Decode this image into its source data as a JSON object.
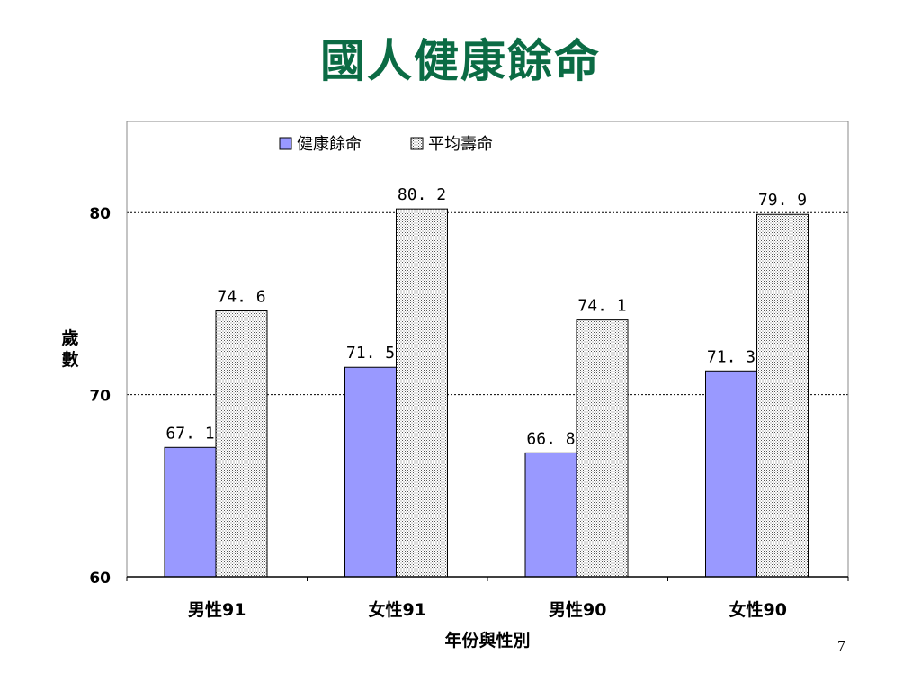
{
  "slide": {
    "title": "國人健康餘命",
    "page_number": "7"
  },
  "chart_data": {
    "type": "bar",
    "title": "",
    "xlabel": "年份與性別",
    "ylabel": "歲數",
    "categories": [
      "男性91",
      "女性91",
      "男性90",
      "女性90"
    ],
    "series": [
      {
        "name": "健康餘命",
        "values": [
          67.1,
          71.5,
          66.8,
          71.3
        ],
        "labels": [
          "67.1",
          "71.5",
          "66.8",
          "71.3"
        ],
        "color": "#9999ff",
        "pattern": "solid"
      },
      {
        "name": "平均壽命",
        "values": [
          74.6,
          80.2,
          74.1,
          79.9
        ],
        "labels": [
          "74.6",
          "80.2",
          "74.1",
          "79.9"
        ],
        "color": "#ffffff",
        "pattern": "dotted"
      }
    ],
    "ylim": [
      60,
      85
    ],
    "yticks": [
      60,
      70,
      80
    ],
    "grid": "dashed horizontal at 70 and 80",
    "legend": "top-center"
  }
}
